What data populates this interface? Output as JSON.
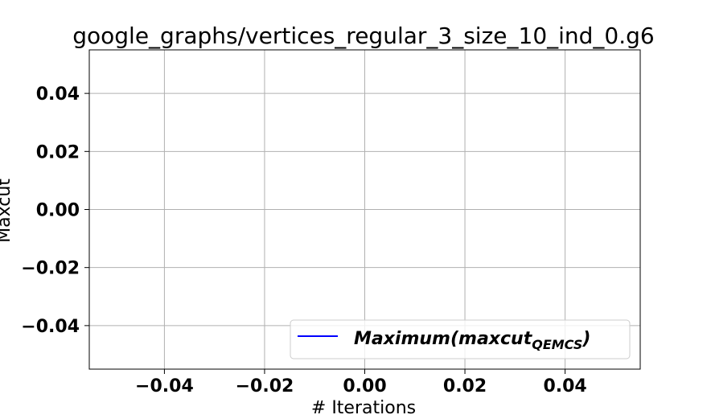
{
  "chart_data": {
    "type": "line",
    "title": "google_graphs/vertices_regular_3_size_10_ind_0.g6",
    "xlabel": "# Iterations",
    "ylabel": "Maxcut",
    "xlim": [
      -0.055,
      0.055
    ],
    "ylim": [
      -0.055,
      0.055
    ],
    "x_ticks": [
      -0.04,
      -0.02,
      0.0,
      0.02,
      0.04
    ],
    "y_ticks": [
      -0.04,
      -0.02,
      0.0,
      0.02,
      0.04
    ],
    "x_tick_labels": [
      "−0.04",
      "−0.02",
      "0.00",
      "0.02",
      "0.04"
    ],
    "y_tick_labels": [
      "−0.04",
      "−0.02",
      "0.00",
      "0.02",
      "0.04"
    ],
    "grid": true,
    "legend_position": "lower-right",
    "series": [
      {
        "name": "Maximum(maxcut",
        "name_subscript": "QEMCS",
        "name_suffix": ")",
        "color": "#0000ff",
        "x": [],
        "y": []
      }
    ]
  }
}
